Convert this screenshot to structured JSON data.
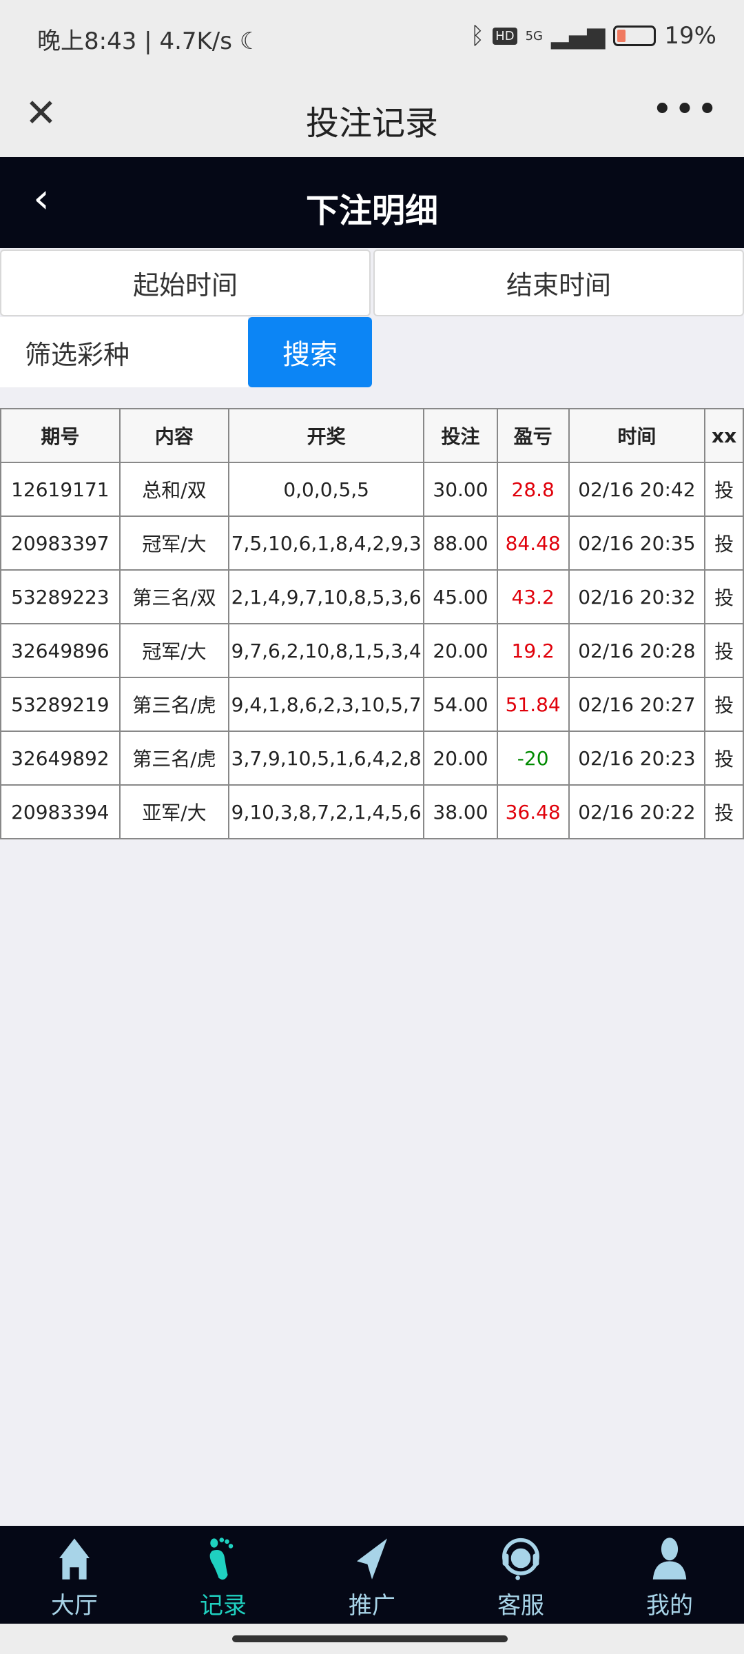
{
  "status_bar": {
    "time": "晚上8:43",
    "speed": "4.7K/s",
    "network": "5G",
    "battery": "19%",
    "battery_level": 19
  },
  "titlebar": {
    "title": "投注记录"
  },
  "header": {
    "title": "下注明细"
  },
  "filters": {
    "start_time": "起始时间",
    "end_time": "结束时间",
    "lottery_select": "筛选彩种",
    "search": "搜索"
  },
  "table": {
    "columns": [
      "期号",
      "内容",
      "开奖",
      "投注",
      "盈亏",
      "时间",
      "xx"
    ],
    "rows": [
      {
        "id": "12619171",
        "content": "总和/双",
        "draw": "0,0,0,5,5",
        "bet": "30.00",
        "pnl": "28.8",
        "pnl_color": "red",
        "time": "02/16 20:42",
        "x": "投"
      },
      {
        "id": "20983397",
        "content": "冠军/大",
        "draw": "7,5,10,6,1,8,4,2,9,3",
        "bet": "88.00",
        "pnl": "84.48",
        "pnl_color": "red",
        "time": "02/16 20:35",
        "x": "投"
      },
      {
        "id": "53289223",
        "content": "第三名/双",
        "draw": "2,1,4,9,7,10,8,5,3,6",
        "bet": "45.00",
        "pnl": "43.2",
        "pnl_color": "red",
        "time": "02/16 20:32",
        "x": "投"
      },
      {
        "id": "32649896",
        "content": "冠军/大",
        "draw": "9,7,6,2,10,8,1,5,3,4",
        "bet": "20.00",
        "pnl": "19.2",
        "pnl_color": "red",
        "time": "02/16 20:28",
        "x": "投"
      },
      {
        "id": "53289219",
        "content": "第三名/虎",
        "draw": "9,4,1,8,6,2,3,10,5,7",
        "bet": "54.00",
        "pnl": "51.84",
        "pnl_color": "red",
        "time": "02/16 20:27",
        "x": "投"
      },
      {
        "id": "32649892",
        "content": "第三名/虎",
        "draw": "3,7,9,10,5,1,6,4,2,8",
        "bet": "20.00",
        "pnl": "-20",
        "pnl_color": "green",
        "time": "02/16 20:23",
        "x": "投"
      },
      {
        "id": "20983394",
        "content": "亚军/大",
        "draw": "9,10,3,8,7,2,1,4,5,6",
        "bet": "38.00",
        "pnl": "36.48",
        "pnl_color": "red",
        "time": "02/16 20:22",
        "x": "投"
      }
    ]
  },
  "nav": {
    "items": [
      {
        "label": "大厅",
        "icon": "home-icon"
      },
      {
        "label": "记录",
        "icon": "footprint-icon",
        "active": true
      },
      {
        "label": "推广",
        "icon": "paper-plane-icon"
      },
      {
        "label": "客服",
        "icon": "headset-icon"
      },
      {
        "label": "我的",
        "icon": "user-icon"
      }
    ]
  },
  "colors": {
    "header_bg": "#050816",
    "accent": "#0c85f5",
    "nav_active": "#1fd1c0",
    "nav_inactive": "#a8d4e8",
    "loss": "#008a00",
    "win": "#e0000a"
  }
}
